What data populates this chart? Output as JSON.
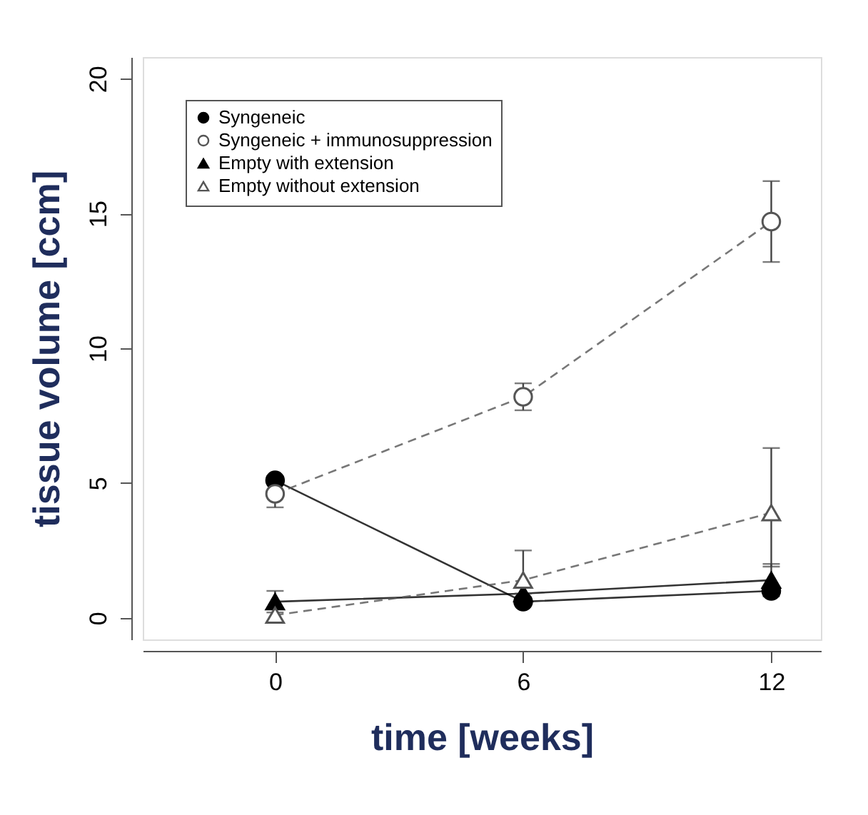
{
  "chart_data": {
    "type": "line",
    "xlabel": "time [weeks]",
    "ylabel": "tissue volume [ccm]",
    "x": [
      0,
      6,
      12
    ],
    "xlim": [
      -3.2,
      13.2
    ],
    "xticks": [
      0,
      6,
      12
    ],
    "ylim": [
      -0.8,
      20.8
    ],
    "yticks": [
      0,
      5,
      10,
      15,
      20
    ],
    "grid": false,
    "legend": "top left",
    "series": [
      {
        "name": "Syngeneic",
        "color": "#000000",
        "marker": "circle",
        "line_style": "solid",
        "values": [
          5.1,
          0.6,
          1.0
        ],
        "errors": [
          null,
          null,
          null
        ]
      },
      {
        "name": "Syngeneic + immunosuppression",
        "color": "#555555",
        "marker": "circle",
        "line_style": "dashed",
        "values": [
          4.6,
          8.2,
          14.7
        ],
        "errors": [
          0.5,
          0.5,
          [
            13.2,
            16.2
          ]
        ]
      },
      {
        "name": "Empty with extension",
        "color": "#000000",
        "marker": "triangle",
        "line_style": "solid",
        "values": [
          0.6,
          0.9,
          1.4
        ],
        "errors": [
          0.4,
          null,
          0.6
        ]
      },
      {
        "name": "Empty without extension",
        "color": "#555555",
        "marker": "triangle",
        "line_style": "dashed",
        "values": [
          0.1,
          1.4,
          3.9
        ],
        "errors": [
          null,
          [
            0.9,
            2.5
          ],
          [
            1.9,
            6.3
          ]
        ]
      }
    ]
  }
}
